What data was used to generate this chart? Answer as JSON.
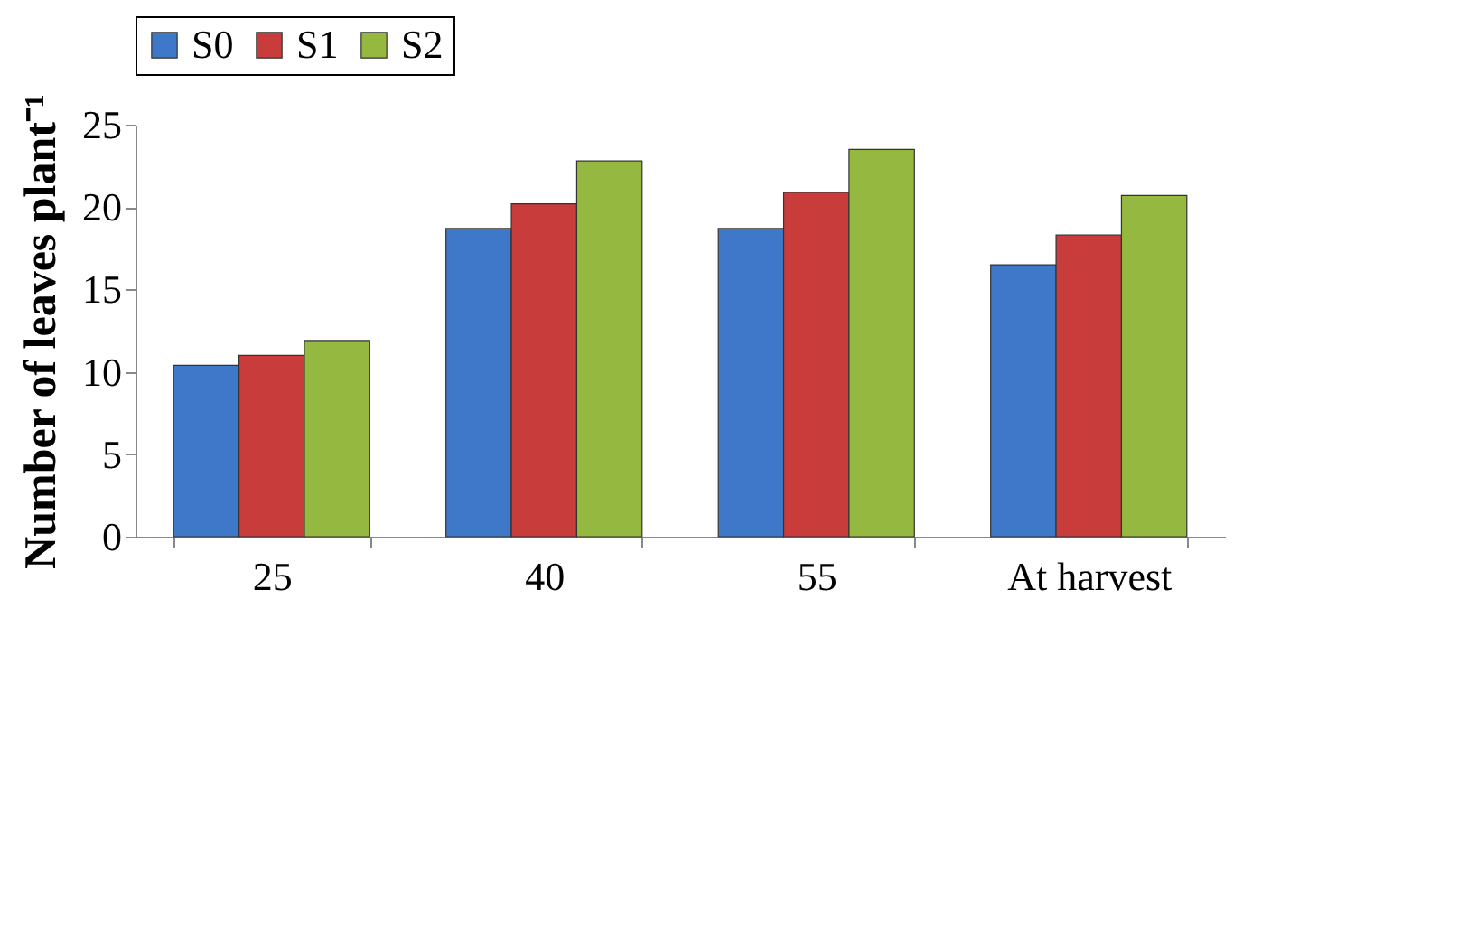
{
  "chart_data": {
    "type": "bar",
    "ylabel": "Number of leaves plant⁻¹",
    "categories": [
      "25",
      "40",
      "55",
      "At harvest"
    ],
    "series": [
      {
        "name": "S0",
        "color": "#3f78c8",
        "values": [
          10.4,
          18.7,
          18.7,
          16.5
        ]
      },
      {
        "name": "S1",
        "color": "#c83c3c",
        "values": [
          11.0,
          20.2,
          20.9,
          18.3
        ]
      },
      {
        "name": "S2",
        "color": "#94b840",
        "values": [
          11.9,
          22.8,
          23.5,
          20.7
        ]
      }
    ],
    "ylim": [
      0,
      25
    ],
    "yticks": [
      0,
      5,
      10,
      15,
      20,
      25
    ],
    "grid": false,
    "legend": "top"
  }
}
